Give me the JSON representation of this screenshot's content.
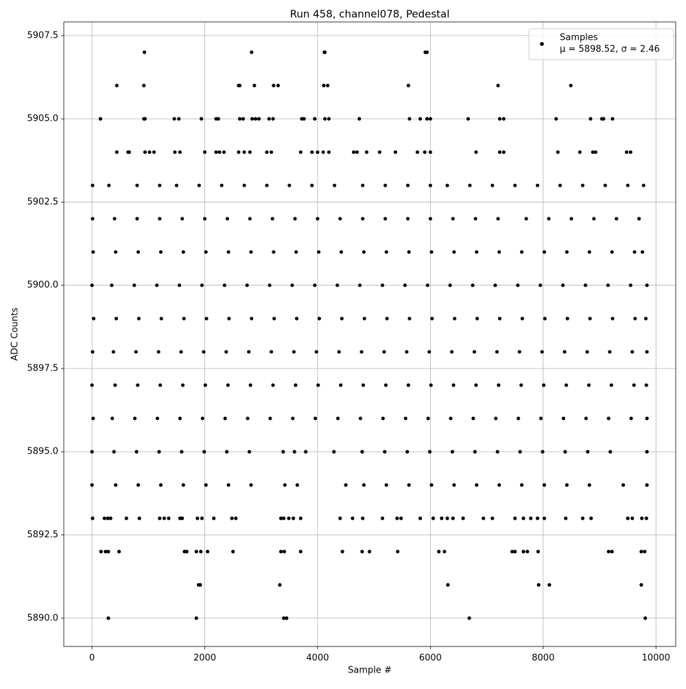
{
  "chart_data": {
    "type": "scatter",
    "title": "Run 458, channel078, Pedestal",
    "x_label": "Sample #",
    "y_label": "ADC Counts",
    "xlim": [
      -500,
      10350
    ],
    "ylim": [
      5889.15,
      5907.91
    ],
    "xticks": [
      0,
      2000,
      4000,
      6000,
      8000,
      10000
    ],
    "yticks": [
      {
        "value": 5890,
        "label": "5890.0"
      },
      5892.5,
      {
        "value": 5895,
        "label": "5895.0"
      },
      5897.5,
      {
        "value": 5900,
        "label": "5900.0"
      },
      5902.5,
      {
        "value": 5905,
        "label": "5905.0"
      },
      5907.5
    ],
    "grid": true,
    "legend_position": "upper right",
    "color": "#000000",
    "legend": {
      "label": "Samples",
      "stats": "μ = 5898.52, σ = 2.46"
    },
    "points": [
      [
        930,
        5907
      ],
      [
        2830,
        5907
      ],
      [
        4120,
        5907
      ],
      [
        4130,
        5907
      ],
      [
        5910,
        5907
      ],
      [
        5940,
        5907
      ],
      [
        440,
        5906
      ],
      [
        920,
        5906
      ],
      [
        2600,
        5906
      ],
      [
        2620,
        5906
      ],
      [
        2880,
        5906
      ],
      [
        3220,
        5906
      ],
      [
        3300,
        5906
      ],
      [
        4110,
        5906
      ],
      [
        4180,
        5906
      ],
      [
        5610,
        5906
      ],
      [
        7200,
        5906
      ],
      [
        8490,
        5906
      ],
      [
        150,
        5905
      ],
      [
        920,
        5905
      ],
      [
        940,
        5905
      ],
      [
        1460,
        5905
      ],
      [
        1540,
        5905
      ],
      [
        1940,
        5905
      ],
      [
        2200,
        5905
      ],
      [
        2240,
        5905
      ],
      [
        2620,
        5905
      ],
      [
        2680,
        5905
      ],
      [
        2840,
        5905
      ],
      [
        2900,
        5905
      ],
      [
        2960,
        5905
      ],
      [
        3140,
        5905
      ],
      [
        3210,
        5905
      ],
      [
        3720,
        5905
      ],
      [
        3760,
        5905
      ],
      [
        3950,
        5905
      ],
      [
        4130,
        5905
      ],
      [
        4200,
        5905
      ],
      [
        4740,
        5905
      ],
      [
        5630,
        5905
      ],
      [
        5820,
        5905
      ],
      [
        5940,
        5905
      ],
      [
        6000,
        5905
      ],
      [
        6670,
        5905
      ],
      [
        7230,
        5905
      ],
      [
        7300,
        5905
      ],
      [
        8230,
        5905
      ],
      [
        8840,
        5905
      ],
      [
        9040,
        5905
      ],
      [
        9070,
        5905
      ],
      [
        9230,
        5905
      ],
      [
        440,
        5904
      ],
      [
        640,
        5904
      ],
      [
        660,
        5904
      ],
      [
        940,
        5904
      ],
      [
        1020,
        5904
      ],
      [
        1100,
        5904
      ],
      [
        1470,
        5904
      ],
      [
        1560,
        5904
      ],
      [
        2000,
        5904
      ],
      [
        2200,
        5904
      ],
      [
        2260,
        5904
      ],
      [
        2340,
        5904
      ],
      [
        2600,
        5904
      ],
      [
        2700,
        5904
      ],
      [
        2800,
        5904
      ],
      [
        3100,
        5904
      ],
      [
        3180,
        5904
      ],
      [
        3700,
        5904
      ],
      [
        3900,
        5904
      ],
      [
        4000,
        5904
      ],
      [
        4100,
        5904
      ],
      [
        4200,
        5904
      ],
      [
        4640,
        5904
      ],
      [
        4700,
        5904
      ],
      [
        4870,
        5904
      ],
      [
        5100,
        5904
      ],
      [
        5380,
        5904
      ],
      [
        5770,
        5904
      ],
      [
        5900,
        5904
      ],
      [
        6000,
        5904
      ],
      [
        6810,
        5904
      ],
      [
        7230,
        5904
      ],
      [
        7300,
        5904
      ],
      [
        8260,
        5904
      ],
      [
        8650,
        5904
      ],
      [
        8880,
        5904
      ],
      [
        8930,
        5904
      ],
      [
        9480,
        5904
      ],
      [
        9550,
        5904
      ],
      [
        10,
        5903
      ],
      [
        300,
        5903
      ],
      [
        800,
        5903
      ],
      [
        1200,
        5903
      ],
      [
        1500,
        5903
      ],
      [
        1900,
        5903
      ],
      [
        2300,
        5903
      ],
      [
        2700,
        5903
      ],
      [
        3100,
        5903
      ],
      [
        3500,
        5903
      ],
      [
        3900,
        5903
      ],
      [
        4300,
        5903
      ],
      [
        4800,
        5903
      ],
      [
        5200,
        5903
      ],
      [
        5600,
        5903
      ],
      [
        6000,
        5903
      ],
      [
        6300,
        5903
      ],
      [
        6700,
        5903
      ],
      [
        7100,
        5903
      ],
      [
        7500,
        5903
      ],
      [
        7900,
        5903
      ],
      [
        8300,
        5903
      ],
      [
        8700,
        5903
      ],
      [
        9100,
        5903
      ],
      [
        9500,
        5903
      ],
      [
        9780,
        5903
      ],
      [
        10,
        5902
      ],
      [
        400,
        5902
      ],
      [
        800,
        5902
      ],
      [
        1200,
        5902
      ],
      [
        1600,
        5902
      ],
      [
        2000,
        5902
      ],
      [
        2400,
        5902
      ],
      [
        2800,
        5902
      ],
      [
        3200,
        5902
      ],
      [
        3600,
        5902
      ],
      [
        4000,
        5902
      ],
      [
        4400,
        5902
      ],
      [
        4800,
        5902
      ],
      [
        5200,
        5902
      ],
      [
        5600,
        5902
      ],
      [
        6000,
        5902
      ],
      [
        6400,
        5902
      ],
      [
        6800,
        5902
      ],
      [
        7200,
        5902
      ],
      [
        7700,
        5902
      ],
      [
        8100,
        5902
      ],
      [
        8500,
        5902
      ],
      [
        8900,
        5902
      ],
      [
        9300,
        5902
      ],
      [
        9700,
        5902
      ],
      [
        20,
        5901
      ],
      [
        420,
        5901
      ],
      [
        820,
        5901
      ],
      [
        1220,
        5901
      ],
      [
        1620,
        5901
      ],
      [
        2020,
        5901
      ],
      [
        2420,
        5901
      ],
      [
        2820,
        5901
      ],
      [
        3220,
        5901
      ],
      [
        3620,
        5901
      ],
      [
        4020,
        5901
      ],
      [
        4420,
        5901
      ],
      [
        4820,
        5901
      ],
      [
        5220,
        5901
      ],
      [
        5620,
        5901
      ],
      [
        6020,
        5901
      ],
      [
        6420,
        5901
      ],
      [
        6820,
        5901
      ],
      [
        7220,
        5901
      ],
      [
        7620,
        5901
      ],
      [
        8020,
        5901
      ],
      [
        8420,
        5901
      ],
      [
        8820,
        5901
      ],
      [
        9220,
        5901
      ],
      [
        9620,
        5901
      ],
      [
        9760,
        5901
      ],
      [
        0,
        5900
      ],
      [
        350,
        5900
      ],
      [
        750,
        5900
      ],
      [
        1150,
        5900
      ],
      [
        1550,
        5900
      ],
      [
        1950,
        5900
      ],
      [
        2350,
        5900
      ],
      [
        2750,
        5900
      ],
      [
        3150,
        5900
      ],
      [
        3550,
        5900
      ],
      [
        3950,
        5900
      ],
      [
        4350,
        5900
      ],
      [
        4750,
        5900
      ],
      [
        5150,
        5900
      ],
      [
        5550,
        5900
      ],
      [
        5950,
        5900
      ],
      [
        6350,
        5900
      ],
      [
        6750,
        5900
      ],
      [
        7150,
        5900
      ],
      [
        7550,
        5900
      ],
      [
        7950,
        5900
      ],
      [
        8350,
        5900
      ],
      [
        8750,
        5900
      ],
      [
        9150,
        5900
      ],
      [
        9550,
        5900
      ],
      [
        9840,
        5900
      ],
      [
        30,
        5899
      ],
      [
        430,
        5899
      ],
      [
        830,
        5899
      ],
      [
        1230,
        5899
      ],
      [
        1630,
        5899
      ],
      [
        2030,
        5899
      ],
      [
        2430,
        5899
      ],
      [
        2830,
        5899
      ],
      [
        3230,
        5899
      ],
      [
        3630,
        5899
      ],
      [
        4030,
        5899
      ],
      [
        4430,
        5899
      ],
      [
        4830,
        5899
      ],
      [
        5230,
        5899
      ],
      [
        5630,
        5899
      ],
      [
        6030,
        5899
      ],
      [
        6430,
        5899
      ],
      [
        6830,
        5899
      ],
      [
        7230,
        5899
      ],
      [
        7630,
        5899
      ],
      [
        8030,
        5899
      ],
      [
        8430,
        5899
      ],
      [
        8830,
        5899
      ],
      [
        9230,
        5899
      ],
      [
        9630,
        5899
      ],
      [
        9820,
        5899
      ],
      [
        10,
        5898
      ],
      [
        380,
        5898
      ],
      [
        780,
        5898
      ],
      [
        1180,
        5898
      ],
      [
        1580,
        5898
      ],
      [
        1980,
        5898
      ],
      [
        2380,
        5898
      ],
      [
        2780,
        5898
      ],
      [
        3180,
        5898
      ],
      [
        3580,
        5898
      ],
      [
        3980,
        5898
      ],
      [
        4380,
        5898
      ],
      [
        4780,
        5898
      ],
      [
        5180,
        5898
      ],
      [
        5580,
        5898
      ],
      [
        5980,
        5898
      ],
      [
        6380,
        5898
      ],
      [
        6780,
        5898
      ],
      [
        7180,
        5898
      ],
      [
        7580,
        5898
      ],
      [
        7980,
        5898
      ],
      [
        8380,
        5898
      ],
      [
        8780,
        5898
      ],
      [
        9180,
        5898
      ],
      [
        9580,
        5898
      ],
      [
        9840,
        5898
      ],
      [
        0,
        5897
      ],
      [
        410,
        5897
      ],
      [
        810,
        5897
      ],
      [
        1210,
        5897
      ],
      [
        1610,
        5897
      ],
      [
        2010,
        5897
      ],
      [
        2410,
        5897
      ],
      [
        2810,
        5897
      ],
      [
        3210,
        5897
      ],
      [
        3610,
        5897
      ],
      [
        4010,
        5897
      ],
      [
        4410,
        5897
      ],
      [
        4810,
        5897
      ],
      [
        5210,
        5897
      ],
      [
        5610,
        5897
      ],
      [
        6010,
        5897
      ],
      [
        6410,
        5897
      ],
      [
        6810,
        5897
      ],
      [
        7210,
        5897
      ],
      [
        7610,
        5897
      ],
      [
        8010,
        5897
      ],
      [
        8410,
        5897
      ],
      [
        8810,
        5897
      ],
      [
        9210,
        5897
      ],
      [
        9610,
        5897
      ],
      [
        9830,
        5897
      ],
      [
        20,
        5896
      ],
      [
        360,
        5896
      ],
      [
        760,
        5896
      ],
      [
        1160,
        5896
      ],
      [
        1560,
        5896
      ],
      [
        1960,
        5896
      ],
      [
        2360,
        5896
      ],
      [
        2760,
        5896
      ],
      [
        3160,
        5896
      ],
      [
        3560,
        5896
      ],
      [
        3960,
        5896
      ],
      [
        4360,
        5896
      ],
      [
        4760,
        5896
      ],
      [
        5160,
        5896
      ],
      [
        5560,
        5896
      ],
      [
        5960,
        5896
      ],
      [
        6360,
        5896
      ],
      [
        6760,
        5896
      ],
      [
        7160,
        5896
      ],
      [
        7560,
        5896
      ],
      [
        7960,
        5896
      ],
      [
        8360,
        5896
      ],
      [
        8760,
        5896
      ],
      [
        9160,
        5896
      ],
      [
        9560,
        5896
      ],
      [
        9840,
        5896
      ],
      [
        0,
        5895
      ],
      [
        390,
        5895
      ],
      [
        790,
        5895
      ],
      [
        1190,
        5895
      ],
      [
        1590,
        5895
      ],
      [
        1990,
        5895
      ],
      [
        2390,
        5895
      ],
      [
        2790,
        5895
      ],
      [
        3390,
        5895
      ],
      [
        3590,
        5895
      ],
      [
        3790,
        5895
      ],
      [
        4290,
        5895
      ],
      [
        4790,
        5895
      ],
      [
        5190,
        5895
      ],
      [
        5590,
        5895
      ],
      [
        5990,
        5895
      ],
      [
        6390,
        5895
      ],
      [
        6790,
        5895
      ],
      [
        7190,
        5895
      ],
      [
        7590,
        5895
      ],
      [
        7990,
        5895
      ],
      [
        8390,
        5895
      ],
      [
        8790,
        5895
      ],
      [
        9190,
        5895
      ],
      [
        9840,
        5895
      ],
      [
        0,
        5894
      ],
      [
        420,
        5894
      ],
      [
        820,
        5894
      ],
      [
        1220,
        5894
      ],
      [
        1620,
        5894
      ],
      [
        2020,
        5894
      ],
      [
        2420,
        5894
      ],
      [
        2820,
        5894
      ],
      [
        3420,
        5894
      ],
      [
        3640,
        5894
      ],
      [
        4500,
        5894
      ],
      [
        4820,
        5894
      ],
      [
        5220,
        5894
      ],
      [
        5620,
        5894
      ],
      [
        6020,
        5894
      ],
      [
        6420,
        5894
      ],
      [
        6820,
        5894
      ],
      [
        7220,
        5894
      ],
      [
        7620,
        5894
      ],
      [
        8020,
        5894
      ],
      [
        8420,
        5894
      ],
      [
        8820,
        5894
      ],
      [
        9420,
        5894
      ],
      [
        9840,
        5894
      ],
      [
        10,
        5893
      ],
      [
        220,
        5893
      ],
      [
        280,
        5893
      ],
      [
        330,
        5893
      ],
      [
        610,
        5893
      ],
      [
        840,
        5893
      ],
      [
        1200,
        5893
      ],
      [
        1280,
        5893
      ],
      [
        1360,
        5893
      ],
      [
        1560,
        5893
      ],
      [
        1600,
        5893
      ],
      [
        1870,
        5893
      ],
      [
        1950,
        5893
      ],
      [
        2160,
        5893
      ],
      [
        2480,
        5893
      ],
      [
        2550,
        5893
      ],
      [
        3350,
        5893
      ],
      [
        3400,
        5893
      ],
      [
        3490,
        5893
      ],
      [
        3570,
        5893
      ],
      [
        3700,
        5893
      ],
      [
        4400,
        5893
      ],
      [
        4620,
        5893
      ],
      [
        4800,
        5893
      ],
      [
        5150,
        5893
      ],
      [
        5410,
        5893
      ],
      [
        5480,
        5893
      ],
      [
        5820,
        5893
      ],
      [
        6050,
        5893
      ],
      [
        6200,
        5893
      ],
      [
        6300,
        5893
      ],
      [
        6400,
        5893
      ],
      [
        6580,
        5893
      ],
      [
        6940,
        5893
      ],
      [
        7100,
        5893
      ],
      [
        7500,
        5893
      ],
      [
        7650,
        5893
      ],
      [
        7780,
        5893
      ],
      [
        7900,
        5893
      ],
      [
        8020,
        5893
      ],
      [
        8400,
        5893
      ],
      [
        8700,
        5893
      ],
      [
        8850,
        5893
      ],
      [
        9500,
        5893
      ],
      [
        9580,
        5893
      ],
      [
        9750,
        5893
      ],
      [
        9830,
        5893
      ],
      [
        160,
        5892
      ],
      [
        240,
        5892
      ],
      [
        290,
        5892
      ],
      [
        480,
        5892
      ],
      [
        1640,
        5892
      ],
      [
        1680,
        5892
      ],
      [
        1850,
        5892
      ],
      [
        1930,
        5892
      ],
      [
        2050,
        5892
      ],
      [
        2500,
        5892
      ],
      [
        3350,
        5892
      ],
      [
        3410,
        5892
      ],
      [
        3700,
        5892
      ],
      [
        4440,
        5892
      ],
      [
        4790,
        5892
      ],
      [
        4920,
        5892
      ],
      [
        5420,
        5892
      ],
      [
        6150,
        5892
      ],
      [
        6250,
        5892
      ],
      [
        7450,
        5892
      ],
      [
        7500,
        5892
      ],
      [
        7650,
        5892
      ],
      [
        7720,
        5892
      ],
      [
        7910,
        5892
      ],
      [
        9160,
        5892
      ],
      [
        9220,
        5892
      ],
      [
        9740,
        5892
      ],
      [
        9800,
        5892
      ],
      [
        1890,
        5891
      ],
      [
        1920,
        5891
      ],
      [
        3330,
        5891
      ],
      [
        6310,
        5891
      ],
      [
        7920,
        5891
      ],
      [
        8110,
        5891
      ],
      [
        9740,
        5891
      ],
      [
        290,
        5890
      ],
      [
        1850,
        5890
      ],
      [
        3400,
        5890
      ],
      [
        3450,
        5890
      ],
      [
        6690,
        5890
      ],
      [
        9810,
        5890
      ]
    ]
  }
}
